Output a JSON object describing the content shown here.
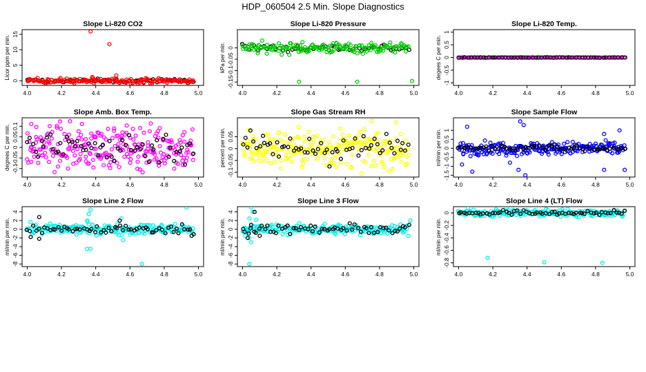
{
  "figure": {
    "title": "HDP_060504  2.5 Min. Slope Diagnostics"
  },
  "colors": {
    "black": "#000000",
    "red": "#ff0000",
    "green": "#00cc00",
    "magenta": "#ff00ff",
    "yellow": "#ffff00",
    "blue": "#0000ff",
    "cyan": "#00eeee"
  },
  "chart_data": [
    {
      "type": "scatter",
      "title": "Slope Li-820 CO2",
      "ylabel": "Licor ppm per min.",
      "xlim": [
        3.97,
        5.03
      ],
      "ylim": [
        -1.5,
        16.5
      ],
      "xticks": [
        4.0,
        4.2,
        4.4,
        4.6,
        4.8,
        5.0
      ],
      "yticks": [
        0,
        5,
        10,
        15
      ],
      "series": [
        {
          "name": "black",
          "color": "#000000",
          "band": [
            0,
            0.3
          ],
          "n": 55
        },
        {
          "name": "red",
          "color": "#ff0000",
          "band": [
            0,
            0.4
          ],
          "n": 160,
          "outliers": [
            [
              4.37,
              15.9
            ],
            [
              4.48,
              11.8
            ],
            [
              4.52,
              1.7
            ],
            [
              4.38,
              1.2
            ],
            [
              4.39,
              -0.8
            ],
            [
              4.12,
              0.5
            ],
            [
              4.7,
              0.6
            ]
          ]
        }
      ]
    },
    {
      "type": "scatter",
      "title": "Slope Li-820 Pressure",
      "ylabel": "kPa per min.",
      "xlim": [
        3.97,
        5.03
      ],
      "ylim": [
        -0.165,
        0.08
      ],
      "xticks": [
        4.0,
        4.2,
        4.4,
        4.6,
        4.8,
        5.0
      ],
      "yticks": [
        0.0,
        -0.05,
        -0.1,
        -0.15
      ],
      "series": [
        {
          "name": "black",
          "color": "#000000",
          "band": [
            0,
            0.008
          ],
          "n": 55
        },
        {
          "name": "green",
          "color": "#00cc00",
          "band": [
            0,
            0.012
          ],
          "n": 160,
          "outliers": [
            [
              4.33,
              -0.149
            ],
            [
              4.67,
              -0.149
            ],
            [
              4.99,
              -0.146
            ],
            [
              4.35,
              0.025
            ],
            [
              4.55,
              0.02
            ]
          ]
        }
      ]
    },
    {
      "type": "scatter",
      "title": "Slope Li-820 Temp.",
      "ylabel": "degees C per min.",
      "xlim": [
        3.97,
        5.03
      ],
      "ylim": [
        -1.1,
        1.1
      ],
      "xticks": [
        4.0,
        4.2,
        4.4,
        4.6,
        4.8,
        5.0
      ],
      "yticks": [
        -1.0,
        -0.5,
        0.0,
        0.5,
        1.0
      ],
      "series": [
        {
          "name": "magenta",
          "color": "#ff00ff",
          "band": [
            0,
            0.005
          ],
          "n": 160,
          "outliers": [
            [
              4.0,
              0.0
            ]
          ]
        },
        {
          "name": "black",
          "color": "#000000",
          "band": [
            0,
            0.005
          ],
          "n": 55
        }
      ]
    },
    {
      "type": "scatter",
      "title": "Slope Amb. Box Temp.",
      "ylabel": "degrees C per min.",
      "xlim": [
        3.97,
        5.03
      ],
      "ylim": [
        -0.14,
        0.14
      ],
      "xticks": [
        4.0,
        4.2,
        4.4,
        4.6,
        4.8,
        5.0
      ],
      "yticks": [
        -0.1,
        -0.05,
        0.0,
        0.05,
        0.1
      ],
      "series": [
        {
          "name": "magenta",
          "color": "#ff00ff",
          "band": [
            0,
            0.05
          ],
          "n": 260,
          "outliers": []
        },
        {
          "name": "black",
          "color": "#000000",
          "band": [
            0,
            0.04
          ],
          "n": 60
        }
      ]
    },
    {
      "type": "scatter",
      "title": "Slope Gas Stream RH",
      "ylabel": "percent per min.",
      "xlim": [
        3.97,
        5.03
      ],
      "ylim": [
        -0.12,
        0.13
      ],
      "xticks": [
        4.0,
        4.2,
        4.4,
        4.6,
        4.8,
        5.0
      ],
      "yticks": [
        -0.1,
        -0.05,
        0.0,
        0.05
      ],
      "series": [
        {
          "name": "yellow",
          "color": "#ffff00",
          "band": [
            0,
            0.04
          ],
          "n": 260,
          "outliers": []
        },
        {
          "name": "black",
          "color": "#000000",
          "band": [
            0,
            0.03
          ],
          "n": 60
        }
      ]
    },
    {
      "type": "scatter",
      "title": "Slope Sample Flow",
      "ylabel": "ml/min per min.",
      "xlim": [
        3.97,
        5.03
      ],
      "ylim": [
        -1.6,
        1.7
      ],
      "xticks": [
        4.0,
        4.2,
        4.4,
        4.6,
        4.8,
        5.0
      ],
      "yticks": [
        -1.5,
        -1.0,
        -0.5,
        0.0,
        0.5,
        1.0
      ],
      "series": [
        {
          "name": "blue",
          "color": "#0000ff",
          "band": [
            0,
            0.18
          ],
          "n": 230,
          "outliers": [
            [
              4.05,
              1.2
            ],
            [
              4.08,
              -1.3
            ],
            [
              4.36,
              1.5
            ],
            [
              4.38,
              1.3
            ],
            [
              4.39,
              -1.5
            ],
            [
              4.35,
              -1.2
            ],
            [
              4.02,
              -0.9
            ],
            [
              4.97,
              -1.2
            ],
            [
              4.94,
              1.0
            ],
            [
              4.85,
              0.8
            ],
            [
              4.85,
              -1.2
            ],
            [
              4.3,
              -0.8
            ]
          ]
        },
        {
          "name": "black",
          "color": "#000000",
          "band": [
            0,
            0.08
          ],
          "n": 60
        }
      ]
    },
    {
      "type": "scatter",
      "title": "Slope Line 2 Flow",
      "ylabel": "ml/min per min.",
      "xlim": [
        3.97,
        5.03
      ],
      "ylim": [
        -8.6,
        5.2
      ],
      "xticks": [
        4.0,
        4.2,
        4.4,
        4.6,
        4.8,
        5.0
      ],
      "yticks": [
        -8,
        -6,
        -4,
        -2,
        0,
        2,
        4
      ],
      "series": [
        {
          "name": "cyan",
          "color": "#00eeee",
          "band": [
            0,
            0.6
          ],
          "n": 200,
          "outliers": [
            [
              4.37,
              4.5
            ],
            [
              4.35,
              -4.5
            ],
            [
              4.37,
              -4.5
            ],
            [
              4.67,
              -8.0
            ],
            [
              4.93,
              5.0
            ],
            [
              4.55,
              2.5
            ],
            [
              4.56,
              -2.5
            ],
            [
              4.35,
              2.0
            ],
            [
              4.36,
              3.5
            ]
          ]
        },
        {
          "name": "black",
          "color": "#000000",
          "band": [
            0,
            0.5
          ],
          "n": 60,
          "outliers": [
            [
              4.07,
              2.8
            ],
            [
              4.02,
              -1.8
            ],
            [
              4.07,
              -2.2
            ],
            [
              4.54,
              2.0
            ],
            [
              4.96,
              -1.5
            ]
          ]
        }
      ]
    },
    {
      "type": "scatter",
      "title": "Slope Line 3 Flow",
      "ylabel": "ml/min per min.",
      "xlim": [
        3.97,
        5.03
      ],
      "ylim": [
        -8.6,
        5.2
      ],
      "xticks": [
        4.0,
        4.2,
        4.4,
        4.6,
        4.8,
        5.0
      ],
      "yticks": [
        -8,
        -6,
        -4,
        -2,
        0,
        2,
        4
      ],
      "series": [
        {
          "name": "cyan",
          "color": "#00eeee",
          "band": [
            0,
            0.6
          ],
          "n": 200,
          "outliers": [
            [
              4.05,
              5.0
            ],
            [
              4.06,
              4.0
            ],
            [
              4.04,
              -2.0
            ],
            [
              4.05,
              -3.0
            ],
            [
              4.04,
              -8.0
            ],
            [
              4.08,
              2.2
            ],
            [
              4.04,
              2.5
            ],
            [
              4.98,
              2.0
            ]
          ]
        },
        {
          "name": "black",
          "color": "#000000",
          "band": [
            0,
            0.5
          ],
          "n": 60,
          "outliers": [
            [
              4.07,
              4.0
            ],
            [
              4.03,
              -2.0
            ],
            [
              4.05,
              1.0
            ],
            [
              4.1,
              -1.5
            ]
          ]
        }
      ]
    },
    {
      "type": "scatter",
      "title": "Slope Line 4 (LT) Flow",
      "ylabel": "ml/min per min.",
      "xlim": [
        3.97,
        5.03
      ],
      "ylim": [
        -0.86,
        0.1
      ],
      "xticks": [
        4.0,
        4.2,
        4.4,
        4.6,
        4.8,
        5.0
      ],
      "yticks": [
        -0.8,
        -0.6,
        -0.4,
        -0.2,
        0.0
      ],
      "series": [
        {
          "name": "cyan",
          "color": "#00eeee",
          "band": [
            0,
            0.03
          ],
          "n": 200,
          "outliers": [
            [
              4.17,
              -0.72
            ],
            [
              4.5,
              -0.79
            ],
            [
              4.84,
              -0.8
            ]
          ]
        },
        {
          "name": "black",
          "color": "#000000",
          "band": [
            0,
            0.02
          ],
          "n": 60
        }
      ]
    }
  ]
}
